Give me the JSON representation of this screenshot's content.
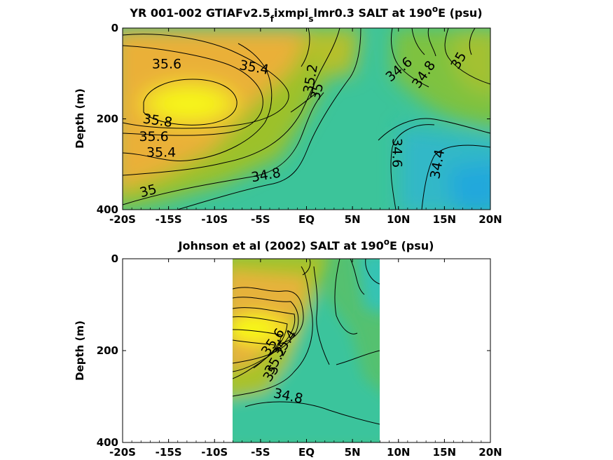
{
  "chart_data": [
    {
      "type": "heatmap",
      "subtype": "contour",
      "title": {
        "prefix": "YR 001-002 GTIAFv2.5",
        "sub1": "f",
        "mid": "ixmpi",
        "sub2": "s",
        "suffix": "lmr0.3 SALT at 190",
        "sup": "o",
        "end": "E (psu)"
      },
      "ylabel": "Depth (m)",
      "xlim": [
        -20,
        20
      ],
      "ylim": [
        0,
        400
      ],
      "y_reversed": true,
      "x_tick_labels": [
        "-20S",
        "-15S",
        "-10S",
        "-5S",
        "EQ",
        "5N",
        "10N",
        "15N",
        "20N"
      ],
      "y_tick_labels": [
        "0",
        "200",
        "400"
      ],
      "contour_levels": [
        34.4,
        34.6,
        34.8,
        35,
        35.2,
        35.4,
        35.6,
        35.8
      ],
      "contour_labels": [
        {
          "text": "35.6",
          "x": -15.2,
          "y": 80,
          "angle": 0
        },
        {
          "text": "35.4",
          "x": -5.7,
          "y": 88,
          "angle": 10
        },
        {
          "text": "35.2",
          "x": 0.5,
          "y": 112,
          "angle": -80
        },
        {
          "text": "35",
          "x": 1.2,
          "y": 140,
          "angle": -75
        },
        {
          "text": "35.8",
          "x": -16.2,
          "y": 205,
          "angle": 8
        },
        {
          "text": "35.6",
          "x": -16.6,
          "y": 240,
          "angle": 0
        },
        {
          "text": "35.4",
          "x": -15.8,
          "y": 275,
          "angle": 0
        },
        {
          "text": "35",
          "x": -17.2,
          "y": 360,
          "angle": -15
        },
        {
          "text": "34.8",
          "x": -4.4,
          "y": 325,
          "angle": -10
        },
        {
          "text": "34.6",
          "x": 10.1,
          "y": 92,
          "angle": -40
        },
        {
          "text": "34.8",
          "x": 12.8,
          "y": 103,
          "angle": -55
        },
        {
          "text": "35",
          "x": 16.6,
          "y": 72,
          "angle": -60
        },
        {
          "text": "34.6",
          "x": 9.8,
          "y": 275,
          "angle": 90
        },
        {
          "text": "34.4",
          "x": 14.3,
          "y": 300,
          "angle": -80
        }
      ]
    },
    {
      "type": "heatmap",
      "subtype": "contour",
      "title": {
        "prefix": "Johnson et al (2002) SALT at 190",
        "sup": "o",
        "end": "E (psu)"
      },
      "ylabel": "Depth (m)",
      "xlim": [
        -20,
        20
      ],
      "ylim": [
        0,
        400
      ],
      "y_reversed": true,
      "data_extent_x": [
        -8,
        8
      ],
      "x_tick_labels": [
        "-20S",
        "-15S",
        "-10S",
        "-5S",
        "EQ",
        "5N",
        "10N",
        "15N",
        "20N"
      ],
      "y_tick_labels": [
        "0",
        "200",
        "400"
      ],
      "contour_labels": [
        {
          "text": "35.6",
          "x": -3.6,
          "y": 182,
          "angle": -55
        },
        {
          "text": "35.4",
          "x": -2.3,
          "y": 185,
          "angle": -55
        },
        {
          "text": "35.2",
          "x": -3.3,
          "y": 222,
          "angle": -60
        },
        {
          "text": "35",
          "x": -3.8,
          "y": 250,
          "angle": -55
        },
        {
          "text": "34.8",
          "x": -2.0,
          "y": 300,
          "angle": 12
        }
      ]
    }
  ],
  "colors": {
    "colormap": "parula",
    "salinity_max": "#f6f811",
    "salinity_high": "#f4ba38",
    "salinity_mid": "#93c32e",
    "salinity_low": "#30c3a3",
    "salinity_min": "#22a9dc",
    "contour": "#000000"
  }
}
